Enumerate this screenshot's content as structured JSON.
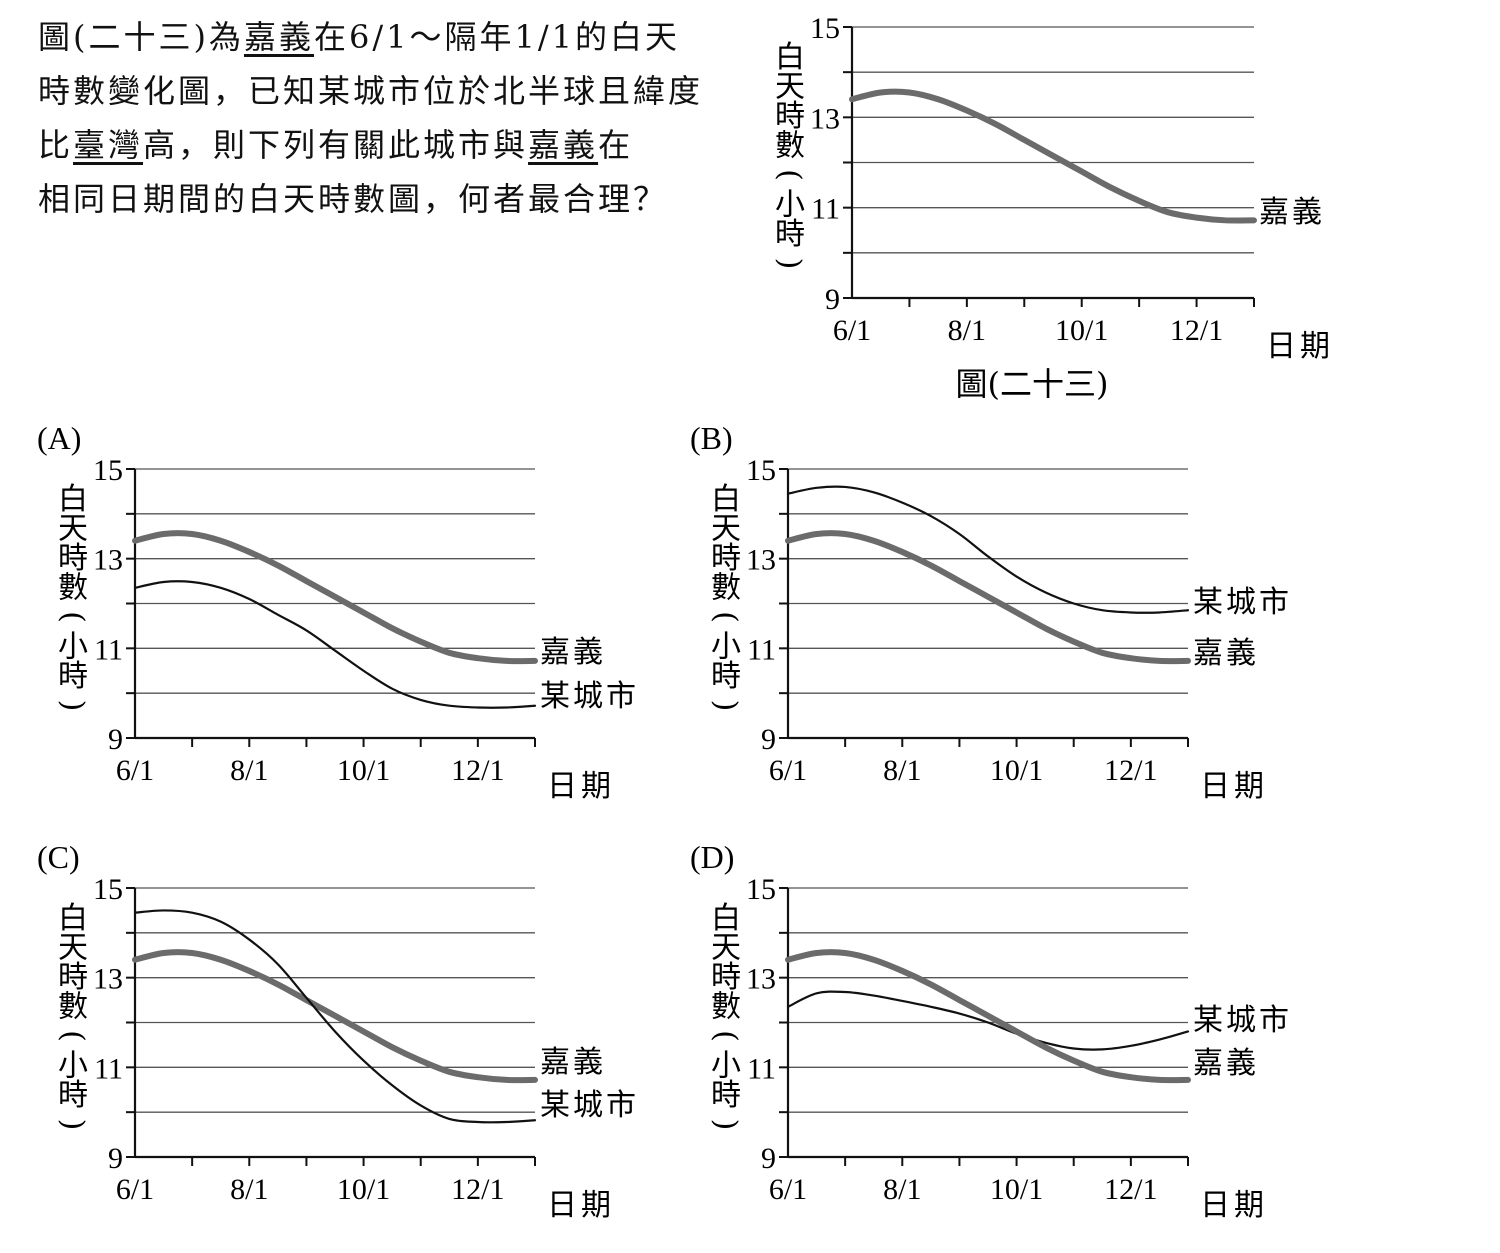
{
  "question": {
    "lines": [
      [
        {
          "t": "圖(二十三)為",
          "u": false
        },
        {
          "t": "嘉義",
          "u": true
        },
        {
          "t": "在6/1～隔年1/1的白天",
          "u": false
        }
      ],
      [
        {
          "t": "時數變化圖，已知某城市位於北半球且緯度",
          "u": false
        }
      ],
      [
        {
          "t": "比",
          "u": false
        },
        {
          "t": "臺灣",
          "u": true
        },
        {
          "t": "高，則下列有關此城市與",
          "u": false
        },
        {
          "t": "嘉義",
          "u": true
        },
        {
          "t": "在",
          "u": false
        }
      ],
      [
        {
          "t": "相同日期間的白天時數圖，何者最合理？",
          "u": false
        }
      ]
    ]
  },
  "figure_caption": "圖(二十三)",
  "ylabel_chars": [
    "白",
    "天",
    "時",
    "數",
    "(",
    "小",
    "時",
    ")"
  ],
  "xlabel": "日期",
  "chart_data": [
    {
      "id": "fig23",
      "type": "line",
      "panel_label": "",
      "xticks": [
        "6/1",
        "8/1",
        "10/1",
        "12/1"
      ],
      "ylim": [
        9,
        15
      ],
      "yticks": [
        "9",
        "11",
        "13",
        "15"
      ],
      "grid": "horizontal, every 1 hour",
      "series": [
        {
          "name": "嘉義",
          "color": "#6b6b6b",
          "width": 6,
          "x": [
            0,
            0.5,
            1,
            1.5,
            2,
            2.5,
            3,
            3.5,
            4,
            4.5,
            5,
            5.5,
            6,
            6.5,
            7
          ],
          "y": [
            13.4,
            13.55,
            13.55,
            13.4,
            13.15,
            12.85,
            12.5,
            12.15,
            11.8,
            11.45,
            11.15,
            10.9,
            10.78,
            10.72,
            10.72
          ]
        }
      ]
    },
    {
      "id": "A",
      "type": "line",
      "panel_label": "(A)",
      "xticks": [
        "6/1",
        "8/1",
        "10/1",
        "12/1"
      ],
      "ylim": [
        9,
        15
      ],
      "yticks": [
        "9",
        "11",
        "13",
        "15"
      ],
      "grid": "horizontal, every 1 hour",
      "series": [
        {
          "name": "嘉義",
          "color": "#6b6b6b",
          "width": 6,
          "x": [
            0,
            0.5,
            1,
            1.5,
            2,
            2.5,
            3,
            3.5,
            4,
            4.5,
            5,
            5.5,
            6,
            6.5,
            7
          ],
          "y": [
            13.4,
            13.55,
            13.55,
            13.4,
            13.15,
            12.85,
            12.5,
            12.15,
            11.8,
            11.45,
            11.15,
            10.9,
            10.78,
            10.72,
            10.72
          ]
        },
        {
          "name": "某城市",
          "color": "#111111",
          "width": 2.2,
          "x": [
            0,
            0.5,
            1,
            1.5,
            2,
            2.5,
            3,
            3.5,
            4,
            4.5,
            5,
            5.5,
            6,
            6.5,
            7
          ],
          "y": [
            12.35,
            12.48,
            12.48,
            12.35,
            12.1,
            11.75,
            11.4,
            10.95,
            10.5,
            10.1,
            9.85,
            9.72,
            9.68,
            9.68,
            9.72
          ]
        }
      ]
    },
    {
      "id": "B",
      "type": "line",
      "panel_label": "(B)",
      "xticks": [
        "6/1",
        "8/1",
        "10/1",
        "12/1"
      ],
      "ylim": [
        9,
        15
      ],
      "yticks": [
        "9",
        "11",
        "13",
        "15"
      ],
      "grid": "horizontal, every 1 hour",
      "series": [
        {
          "name": "某城市",
          "color": "#111111",
          "width": 2.2,
          "x": [
            0,
            0.5,
            1,
            1.5,
            2,
            2.5,
            3,
            3.5,
            4,
            4.5,
            5,
            5.5,
            6,
            6.5,
            7
          ],
          "y": [
            14.45,
            14.58,
            14.6,
            14.48,
            14.25,
            13.95,
            13.55,
            13.05,
            12.6,
            12.25,
            12.0,
            11.85,
            11.8,
            11.8,
            11.85
          ]
        },
        {
          "name": "嘉義",
          "color": "#6b6b6b",
          "width": 6,
          "x": [
            0,
            0.5,
            1,
            1.5,
            2,
            2.5,
            3,
            3.5,
            4,
            4.5,
            5,
            5.5,
            6,
            6.5,
            7
          ],
          "y": [
            13.4,
            13.55,
            13.55,
            13.4,
            13.15,
            12.85,
            12.5,
            12.15,
            11.8,
            11.45,
            11.15,
            10.9,
            10.78,
            10.72,
            10.72
          ]
        }
      ]
    },
    {
      "id": "C",
      "type": "line",
      "panel_label": "(C)",
      "xticks": [
        "6/1",
        "8/1",
        "10/1",
        "12/1"
      ],
      "ylim": [
        9,
        15
      ],
      "yticks": [
        "9",
        "11",
        "13",
        "15"
      ],
      "grid": "horizontal, every 1 hour",
      "series": [
        {
          "name": "嘉義",
          "color": "#6b6b6b",
          "width": 6,
          "x": [
            0,
            0.5,
            1,
            1.5,
            2,
            2.5,
            3,
            3.5,
            4,
            4.5,
            5,
            5.5,
            6,
            6.5,
            7
          ],
          "y": [
            13.4,
            13.55,
            13.55,
            13.4,
            13.15,
            12.85,
            12.5,
            12.15,
            11.8,
            11.45,
            11.15,
            10.9,
            10.78,
            10.72,
            10.72
          ]
        },
        {
          "name": "某城市",
          "color": "#111111",
          "width": 2.2,
          "x": [
            0,
            0.5,
            1,
            1.5,
            2,
            2.5,
            3,
            3.5,
            4,
            4.5,
            5,
            5.5,
            6,
            6.5,
            7
          ],
          "y": [
            14.45,
            14.5,
            14.45,
            14.25,
            13.85,
            13.3,
            12.55,
            11.8,
            11.15,
            10.6,
            10.15,
            9.85,
            9.78,
            9.78,
            9.82
          ]
        }
      ]
    },
    {
      "id": "D",
      "type": "line",
      "panel_label": "(D)",
      "xticks": [
        "6/1",
        "8/1",
        "10/1",
        "12/1"
      ],
      "ylim": [
        9,
        15
      ],
      "yticks": [
        "9",
        "11",
        "13",
        "15"
      ],
      "grid": "horizontal, every 1 hour",
      "series": [
        {
          "name": "某城市",
          "color": "#111111",
          "width": 2.2,
          "x": [
            0,
            0.5,
            1,
            1.5,
            2,
            2.5,
            3,
            3.5,
            4,
            4.5,
            5,
            5.5,
            6,
            6.5,
            7
          ],
          "y": [
            12.35,
            12.65,
            12.68,
            12.6,
            12.48,
            12.35,
            12.2,
            12.0,
            11.75,
            11.55,
            11.42,
            11.4,
            11.48,
            11.62,
            11.8
          ]
        },
        {
          "name": "嘉義",
          "color": "#6b6b6b",
          "width": 6,
          "x": [
            0,
            0.5,
            1,
            1.5,
            2,
            2.5,
            3,
            3.5,
            4,
            4.5,
            5,
            5.5,
            6,
            6.5,
            7
          ],
          "y": [
            13.4,
            13.55,
            13.55,
            13.4,
            13.15,
            12.85,
            12.5,
            12.15,
            11.8,
            11.45,
            11.15,
            10.9,
            10.78,
            10.72,
            10.72
          ]
        }
      ]
    }
  ]
}
